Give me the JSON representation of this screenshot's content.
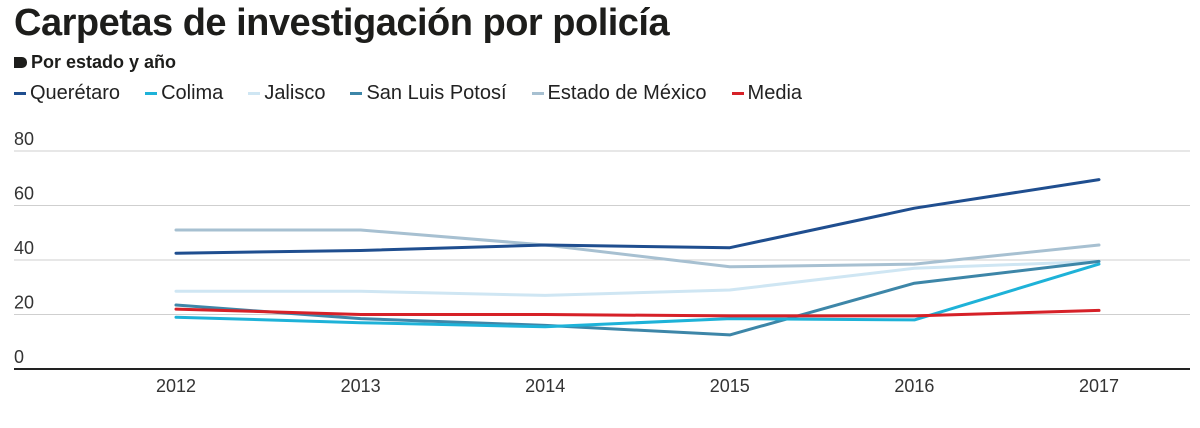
{
  "title": "Carpetas de investigación por policía",
  "subtitle": "Por estado y año",
  "chart_data": {
    "type": "line",
    "title": "Carpetas de investigación por policía",
    "subtitle": "Por estado y año",
    "x": [
      "2012",
      "2013",
      "2014",
      "2015",
      "2016",
      "2017"
    ],
    "ylim": [
      0,
      80
    ],
    "yticks": [
      0,
      20,
      40,
      60,
      80
    ],
    "grid": true,
    "legend_position": "top-left",
    "series": [
      {
        "name": "Querétaro",
        "color": "#1f4e8f",
        "values": [
          42.5,
          43.5,
          45.5,
          44.5,
          59,
          69.5
        ]
      },
      {
        "name": "Colima",
        "color": "#1eb2d8",
        "values": [
          19,
          17,
          15.5,
          18.5,
          18,
          38.5
        ]
      },
      {
        "name": "Jalisco",
        "color": "#cfe6f3",
        "values": [
          28.5,
          28.5,
          27,
          29,
          37,
          39.5
        ]
      },
      {
        "name": "San Luis Potosí",
        "color": "#3d86a8",
        "values": [
          23.5,
          18.5,
          16,
          12.5,
          31.5,
          39.5
        ]
      },
      {
        "name": "Estado de México",
        "color": "#a7c0d1",
        "values": [
          51,
          51,
          45.5,
          37.5,
          38.5,
          45.5
        ]
      },
      {
        "name": "Media",
        "color": "#d62128",
        "values": [
          22,
          20,
          20,
          19.5,
          19.5,
          21.5
        ]
      }
    ]
  }
}
